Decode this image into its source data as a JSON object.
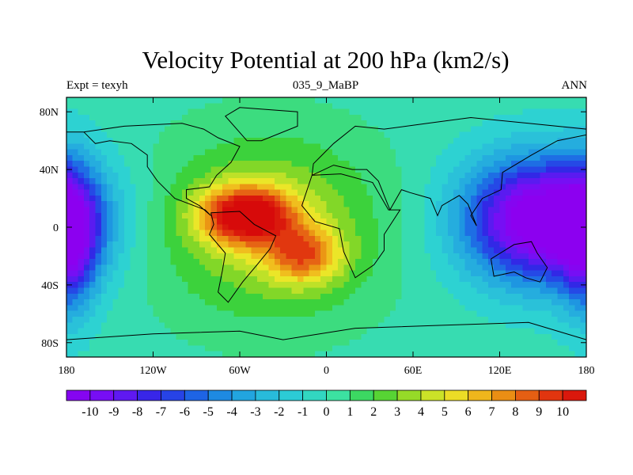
{
  "chart_data": {
    "type": "heatmap",
    "title": "Velocity Potential at 200 hPa (km2/s)",
    "left_string": "Expt = texyh",
    "center_string": "035_9_MaBP",
    "right_string": "ANN",
    "x_ticks": [
      "180",
      "120W",
      "60W",
      "0",
      "60E",
      "120E",
      "180"
    ],
    "x_tick_values": [
      -180,
      -120,
      -60,
      0,
      60,
      120,
      180
    ],
    "y_ticks": [
      "80N",
      "40N",
      "0",
      "40S",
      "80S"
    ],
    "y_tick_values": [
      80,
      40,
      0,
      -40,
      -80
    ],
    "xlim": [
      -180,
      180
    ],
    "ylim": [
      -90,
      90
    ],
    "colorbar_labels": [
      "-10",
      "-9",
      "-8",
      "-7",
      "-6",
      "-5",
      "-4",
      "-3",
      "-2",
      "-1",
      "0",
      "1",
      "2",
      "3",
      "4",
      "5",
      "6",
      "7",
      "8",
      "9",
      "10"
    ],
    "colorbar_range": [
      -10.5,
      10.5
    ],
    "field_centers": [
      {
        "lon": -55,
        "lat": 8,
        "value": 9.5,
        "sx": 22,
        "sy": 14
      },
      {
        "lon": -15,
        "lat": -20,
        "value": 5.5,
        "sx": 18,
        "sy": 14
      },
      {
        "lon": -40,
        "lat": 0,
        "value": 4.0,
        "sx": 55,
        "sy": 45
      },
      {
        "lon": 150,
        "lat": 5,
        "value": -12.5,
        "sx": 38,
        "sy": 30
      },
      {
        "lon": -178,
        "lat": -10,
        "value": -6.5,
        "sx": 14,
        "sy": 35
      }
    ],
    "field_background": 0.0
  }
}
